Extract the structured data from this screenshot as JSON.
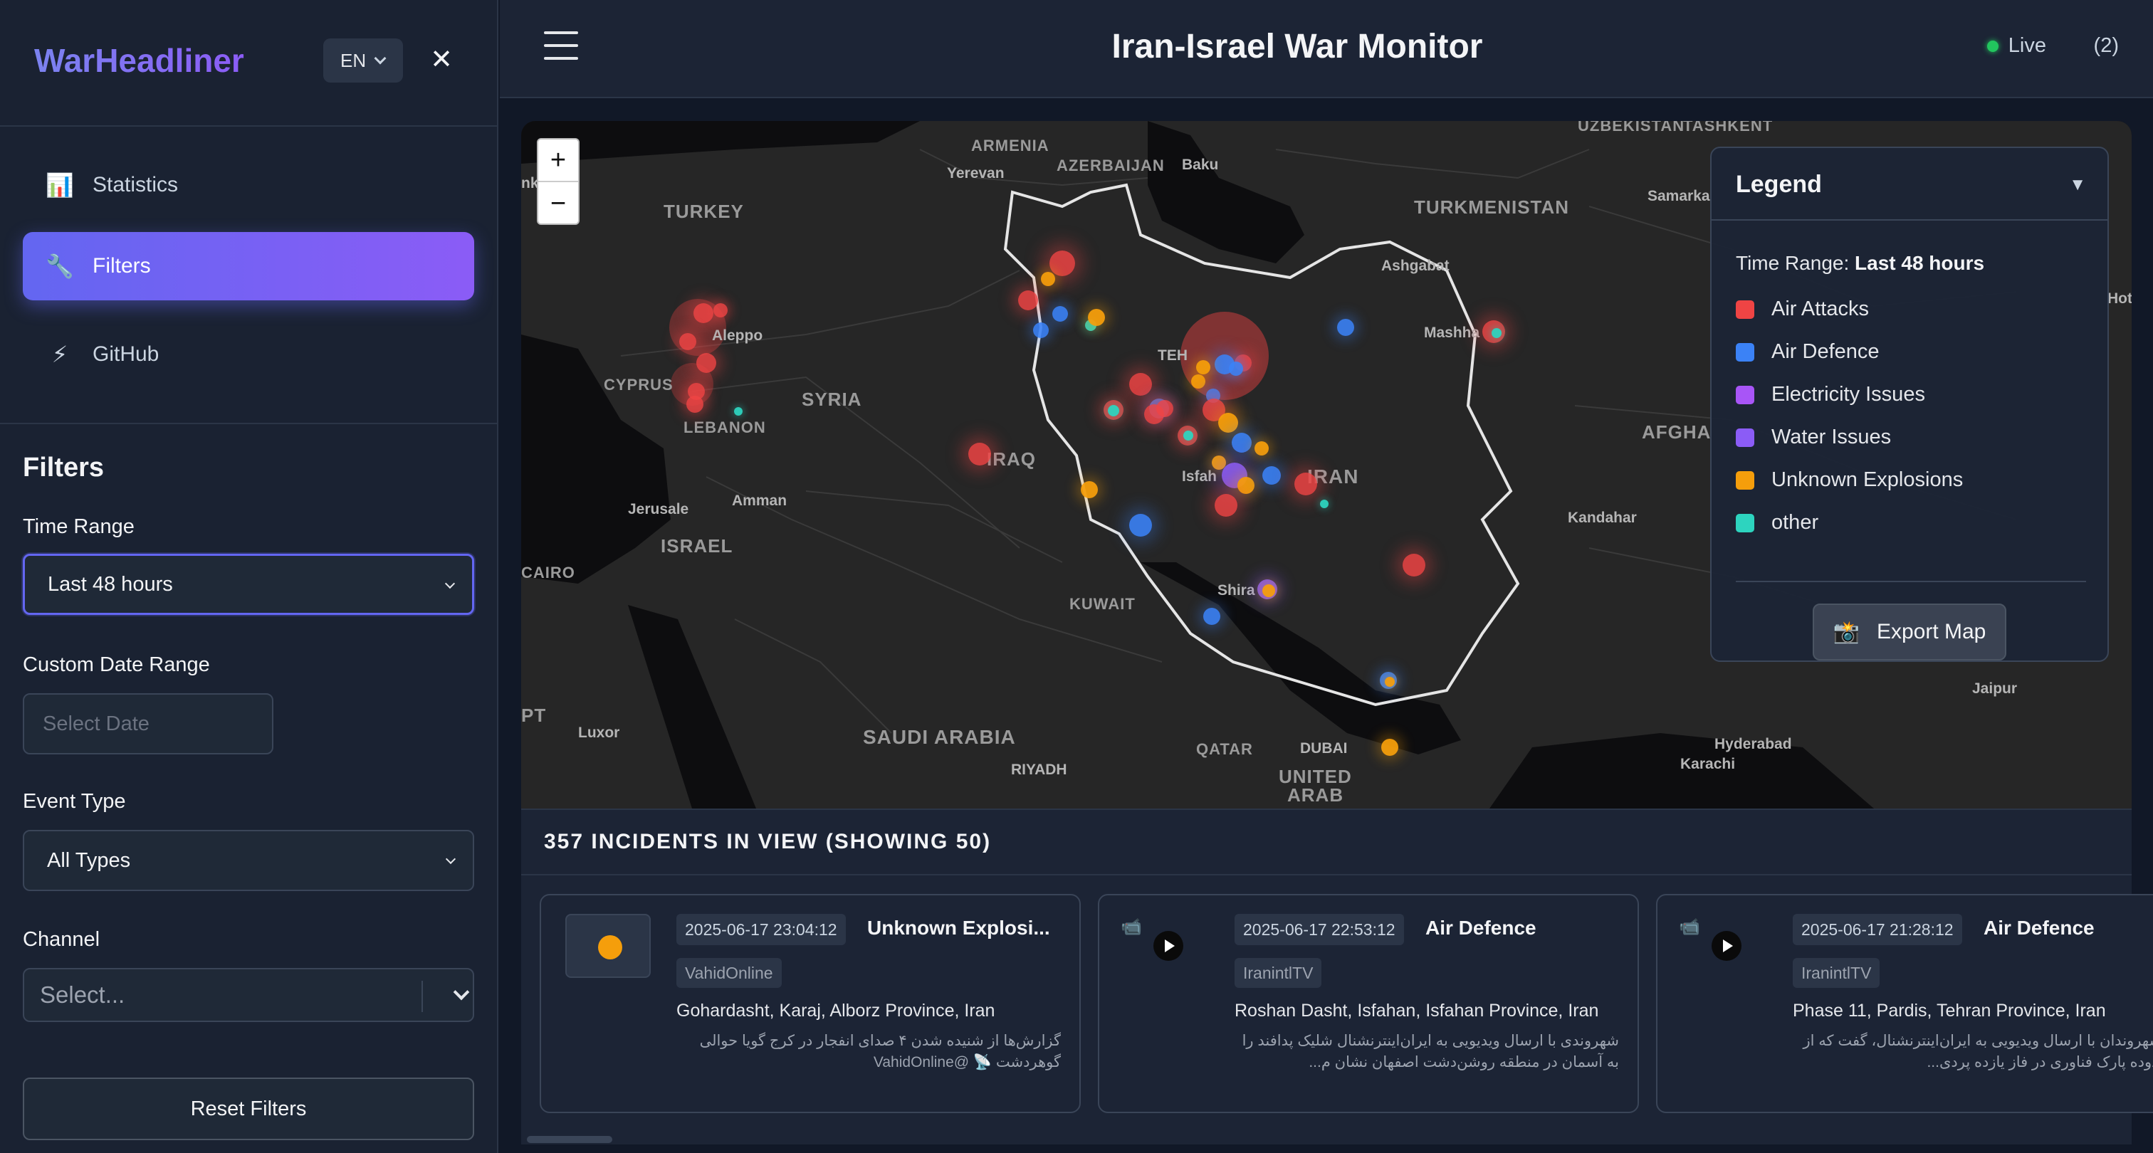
{
  "sidebar": {
    "brand": "WarHeadliner",
    "lang": "EN",
    "nav": [
      {
        "label": "Statistics",
        "icon": "📊",
        "icon_name": "bar-chart-icon"
      },
      {
        "label": "Filters",
        "icon": "🔧",
        "icon_name": "wrench-icon"
      },
      {
        "label": "GitHub",
        "icon": "⚡",
        "icon_name": "lightning-icon"
      }
    ]
  },
  "filters": {
    "heading": "Filters",
    "time_range_label": "Time Range",
    "time_range_value": "Last 48 hours",
    "custom_date_label": "Custom Date Range",
    "date_placeholder": "Select Date",
    "event_type_label": "Event Type",
    "event_type_value": "All Types",
    "channel_label": "Channel",
    "channel_placeholder": "Select...",
    "reset_label": "Reset Filters"
  },
  "header": {
    "title": "Iran-Israel War Monitor",
    "live_label": "Live",
    "count": "(2)"
  },
  "map": {
    "zoom_in": "+",
    "zoom_out": "−",
    "labels": {
      "armenia": "ARMENIA",
      "azerbaijan": "AZERBAIJAN",
      "turkey": "TURKEY",
      "turkmenistan": "TURKMENISTAN",
      "uzbekistan": "UZBEKISTAN",
      "tashkent": "TASHKENT",
      "cyprus": "CYPRUS",
      "syria": "SYRIA",
      "lebanon": "LEBANON",
      "iraq": "IRAQ",
      "israel": "ISRAEL",
      "iran": "IRAN",
      "kuwait": "KUWAIT",
      "saudi": "SAUDI ARABIA",
      "qatar": "QATAR",
      "uae1": "UNITED",
      "uae2": "ARAB",
      "afgha": "AFGHA",
      "cairo": "CAIRO",
      "pt": "PT",
      "yerevan": "Yerevan",
      "baku": "Baku",
      "ankara": "nkara",
      "aleppo": "Aleppo",
      "amman": "Amman",
      "jerusalem": "Jerusale",
      "tehran": "TEH",
      "isfahan": "Isfah",
      "shiraz": "Shira",
      "mashhad": "Mashha",
      "ashgabat": "Ashgabat",
      "samarkand": "Samarka",
      "kandahar": "Kandahar",
      "riyadh": "RIYADH",
      "dubai": "DUBAI",
      "luxor": "Luxor",
      "hyderabad": "Hyderabad",
      "karachi": "Karachi",
      "jaipur": "Jaipur",
      "hot": "Hot"
    }
  },
  "legend": {
    "title": "Legend",
    "toggle": "▼",
    "time_range_prefix": "Time Range:",
    "time_range_value": "Last 48 hours",
    "items": [
      {
        "label": "Air Attacks",
        "color": "#ef4444"
      },
      {
        "label": "Air Defence",
        "color": "#3b82f6"
      },
      {
        "label": "Electricity Issues",
        "color": "#a855f7"
      },
      {
        "label": "Water Issues",
        "color": "#8b5cf6"
      },
      {
        "label": "Unknown Explosions",
        "color": "#f59e0b"
      },
      {
        "label": "other",
        "color": "#2dd4bf"
      }
    ],
    "export_icon": "📸",
    "export_label": "Export Map"
  },
  "incidents": {
    "summary": "357 INCIDENTS IN VIEW (SHOWING 50)",
    "cards": [
      {
        "timestamp": "2025-06-17 23:04:12",
        "type": "Unknown Explosi...",
        "channel": "VahidOnline",
        "location": "Gohardasht, Karaj, Alborz Province, Iran",
        "description": "گزارش‌ها از شنیده شدن ۴ صدای انفجار در کرج گویا حوالی گوهردشت 📡 @VahidOnline",
        "media": "dot"
      },
      {
        "timestamp": "2025-06-17 22:53:12",
        "type": "Air Defence",
        "channel": "IranintlTV",
        "location": "Roshan Dasht, Isfahan, Isfahan Province, Iran",
        "description": "شهروندی با ارسال ویدیویی به ایران‌اینترنشنال شلیک پدافند را به آسمان در منطقه روشن‌دشت اصفهان نشان م...",
        "media": "video"
      },
      {
        "timestamp": "2025-06-17 21:28:12",
        "type": "Air Defence",
        "channel": "IranintlTV",
        "location": "Phase 11, Pardis, Tehran Province, Iran",
        "description": "از شهروندان با ارسال ویدیویی به ایران‌اینترنشنال، گفت که از محدوده پارک فناوری در فاز یازده پردی...",
        "media": "video"
      }
    ]
  }
}
